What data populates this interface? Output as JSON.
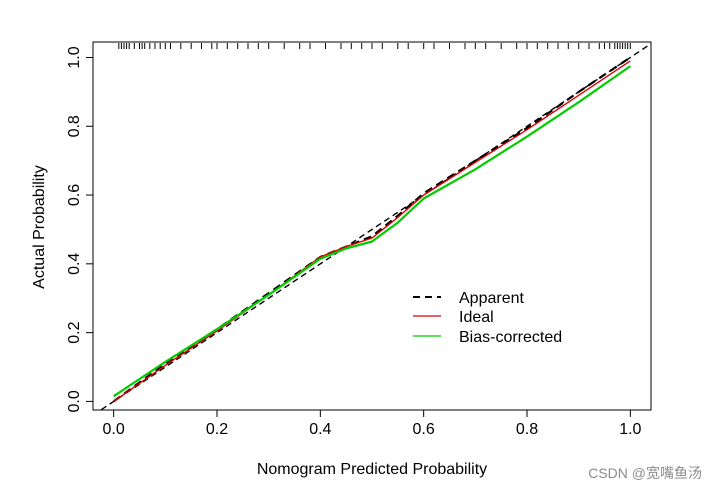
{
  "chart_data": {
    "type": "line",
    "title": "",
    "xlabel": "Nomogram Predicted Probability",
    "ylabel": "Actual Probability",
    "xlim": [
      -0.04,
      1.04
    ],
    "ylim": [
      -0.025,
      1.045
    ],
    "x_ticks": [
      0.0,
      0.2,
      0.4,
      0.6,
      0.8,
      1.0
    ],
    "x_tick_labels": [
      "0.0",
      "0.2",
      "0.4",
      "0.6",
      "0.8",
      "1.0"
    ],
    "y_ticks": [
      0.0,
      0.2,
      0.4,
      0.6,
      0.8,
      1.0
    ],
    "y_tick_labels": [
      "0.0",
      "0.2",
      "0.4",
      "0.6",
      "0.8",
      "1.0"
    ],
    "grid": false,
    "legend_position": "bottom-right",
    "legend": [
      {
        "name": "Apparent",
        "color": "#000000",
        "dash": "dashed"
      },
      {
        "name": "Ideal",
        "color": "#dd0000",
        "dash": "solid"
      },
      {
        "name": "Bias-corrected",
        "color": "#00cc00",
        "dash": "solid"
      }
    ],
    "series": [
      {
        "name": "Ideal (reference diagonal)",
        "color": "#000000",
        "dash": "dashed",
        "x": [
          -0.04,
          1.04
        ],
        "y": [
          -0.04,
          1.04
        ]
      },
      {
        "name": "Apparent",
        "color": "#000000",
        "dash": "dashed",
        "x": [
          0.0,
          0.1,
          0.2,
          0.3,
          0.4,
          0.45,
          0.5,
          0.55,
          0.6,
          0.7,
          0.8,
          0.9,
          1.0
        ],
        "y": [
          0.0,
          0.11,
          0.21,
          0.315,
          0.42,
          0.45,
          0.48,
          0.54,
          0.605,
          0.7,
          0.795,
          0.9,
          1.0
        ]
      },
      {
        "name": "Ideal",
        "color": "#dd0000",
        "dash": "solid",
        "x": [
          0.0,
          0.1,
          0.2,
          0.3,
          0.4,
          0.45,
          0.5,
          0.55,
          0.6,
          0.7,
          0.8,
          0.9,
          1.0
        ],
        "y": [
          0.0,
          0.105,
          0.205,
          0.31,
          0.42,
          0.45,
          0.475,
          0.535,
          0.6,
          0.695,
          0.79,
          0.89,
          0.99
        ]
      },
      {
        "name": "Bias-corrected",
        "color": "#00cc00",
        "dash": "solid",
        "x": [
          0.0,
          0.1,
          0.2,
          0.3,
          0.4,
          0.45,
          0.5,
          0.55,
          0.6,
          0.7,
          0.8,
          0.9,
          1.0
        ],
        "y": [
          0.015,
          0.115,
          0.21,
          0.31,
          0.415,
          0.445,
          0.465,
          0.52,
          0.59,
          0.675,
          0.77,
          0.87,
          0.975
        ]
      }
    ],
    "rug_x": [
      0.01,
      0.015,
      0.02,
      0.025,
      0.03,
      0.04,
      0.05,
      0.055,
      0.06,
      0.07,
      0.08,
      0.09,
      0.1,
      0.11,
      0.13,
      0.15,
      0.17,
      0.19,
      0.2,
      0.22,
      0.24,
      0.26,
      0.28,
      0.3,
      0.33,
      0.36,
      0.38,
      0.41,
      0.44,
      0.46,
      0.48,
      0.5,
      0.52,
      0.55,
      0.57,
      0.6,
      0.62,
      0.65,
      0.68,
      0.7,
      0.72,
      0.75,
      0.78,
      0.8,
      0.82,
      0.84,
      0.86,
      0.88,
      0.9,
      0.92,
      0.94,
      0.95,
      0.96,
      0.97,
      0.975,
      0.98,
      0.985,
      0.99,
      0.995,
      1.0
    ]
  },
  "watermark": "CSDN @宽嘴鱼汤"
}
